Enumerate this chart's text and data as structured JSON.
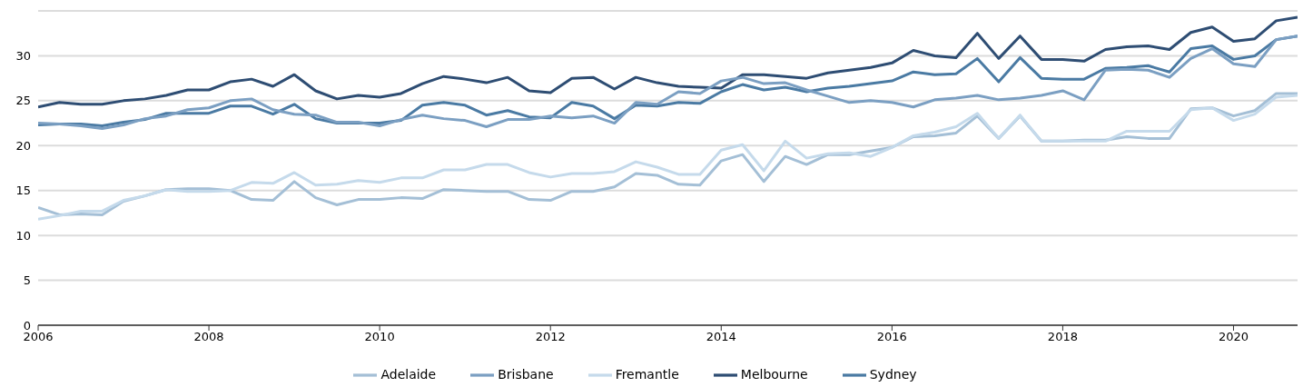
{
  "chart_data": {
    "type": "line",
    "x": [
      2006,
      2006.25,
      2006.5,
      2006.75,
      2007,
      2007.25,
      2007.5,
      2007.75,
      2008,
      2008.25,
      2008.5,
      2008.75,
      2009,
      2009.25,
      2009.5,
      2009.75,
      2010,
      2010.25,
      2010.5,
      2010.75,
      2011,
      2011.25,
      2011.5,
      2011.75,
      2012,
      2012.25,
      2012.5,
      2012.75,
      2013,
      2013.25,
      2013.5,
      2013.75,
      2014,
      2014.25,
      2014.5,
      2014.75,
      2015,
      2015.25,
      2015.5,
      2015.75,
      2016,
      2016.25,
      2016.5,
      2016.75,
      2017,
      2017.25,
      2017.5,
      2017.75,
      2018,
      2018.25,
      2018.5,
      2018.75,
      2019,
      2019.25,
      2019.5,
      2019.75,
      2020,
      2020.25,
      2020.5,
      2020.75
    ],
    "series": [
      {
        "name": "Melbourne",
        "color": "#2e4d73",
        "values": [
          24.3,
          24.8,
          24.6,
          24.6,
          25.0,
          25.2,
          25.6,
          26.2,
          26.2,
          27.1,
          27.4,
          26.6,
          27.9,
          26.1,
          25.2,
          25.6,
          25.4,
          25.8,
          26.9,
          27.7,
          27.4,
          27.0,
          27.6,
          26.1,
          25.9,
          27.5,
          27.6,
          26.3,
          27.6,
          27.0,
          26.6,
          26.5,
          26.4,
          27.9,
          27.9,
          27.7,
          27.5,
          28.1,
          28.4,
          28.7,
          29.2,
          30.6,
          30.0,
          29.8,
          32.5,
          29.7,
          32.2,
          29.6,
          29.6,
          29.4,
          30.7,
          31.0,
          31.1,
          30.7,
          32.6,
          33.2,
          31.6,
          31.9,
          33.9,
          34.3
        ]
      },
      {
        "name": "Sydney",
        "color": "#4a7aa3",
        "values": [
          22.3,
          22.4,
          22.4,
          22.2,
          22.6,
          22.9,
          23.6,
          23.6,
          23.6,
          24.4,
          24.4,
          23.5,
          24.6,
          23.0,
          22.5,
          22.5,
          22.5,
          22.8,
          24.5,
          24.8,
          24.5,
          23.4,
          23.9,
          23.2,
          23.1,
          24.8,
          24.4,
          23.0,
          24.5,
          24.4,
          24.8,
          24.7,
          26.0,
          26.8,
          26.2,
          26.5,
          26.0,
          26.4,
          26.6,
          26.9,
          27.2,
          28.2,
          27.9,
          28.0,
          29.7,
          27.1,
          29.8,
          27.5,
          27.4,
          27.4,
          28.6,
          28.7,
          28.9,
          28.2,
          30.8,
          31.1,
          29.6,
          30.0,
          31.8,
          32.2
        ]
      },
      {
        "name": "Brisbane",
        "color": "#7b9fc2",
        "values": [
          22.5,
          22.4,
          22.2,
          21.9,
          22.3,
          23.0,
          23.3,
          24.0,
          24.2,
          25.0,
          25.2,
          24.0,
          23.5,
          23.4,
          22.6,
          22.6,
          22.2,
          22.9,
          23.4,
          23.0,
          22.8,
          22.1,
          22.9,
          22.9,
          23.3,
          23.1,
          23.3,
          22.5,
          24.8,
          24.6,
          26.0,
          25.8,
          27.2,
          27.6,
          26.9,
          27.0,
          26.2,
          25.5,
          24.8,
          25.0,
          24.8,
          24.3,
          25.1,
          25.3,
          25.6,
          25.1,
          25.3,
          25.6,
          26.1,
          25.1,
          28.4,
          28.5,
          28.4,
          27.6,
          29.7,
          30.8,
          29.1,
          28.8,
          31.8,
          32.2
        ]
      },
      {
        "name": "Adelaide",
        "color": "#a4bfd6",
        "values": [
          13.1,
          12.3,
          12.4,
          12.3,
          13.8,
          14.4,
          15.1,
          15.2,
          15.2,
          15.0,
          14.0,
          13.9,
          16.0,
          14.2,
          13.4,
          14.0,
          14.0,
          14.2,
          14.1,
          15.1,
          15.0,
          14.9,
          14.9,
          14.0,
          13.9,
          14.9,
          14.9,
          15.4,
          16.9,
          16.7,
          15.7,
          15.6,
          18.3,
          19.0,
          16.0,
          18.8,
          17.9,
          19.0,
          19.0,
          19.4,
          19.8,
          21.0,
          21.1,
          21.4,
          23.3,
          20.8,
          23.3,
          20.5,
          20.5,
          20.6,
          20.6,
          21.0,
          20.8,
          20.8,
          24.1,
          24.2,
          23.3,
          23.9,
          25.8,
          25.8
        ]
      },
      {
        "name": "Fremantle",
        "color": "#c5daeb",
        "values": [
          11.8,
          12.2,
          12.7,
          12.7,
          13.9,
          14.4,
          15.1,
          14.9,
          14.9,
          15.0,
          15.9,
          15.8,
          17.0,
          15.6,
          15.7,
          16.1,
          15.9,
          16.4,
          16.4,
          17.3,
          17.3,
          17.9,
          17.9,
          17.0,
          16.5,
          16.9,
          16.9,
          17.1,
          18.2,
          17.6,
          16.8,
          16.8,
          19.5,
          20.1,
          17.2,
          20.5,
          18.6,
          19.1,
          19.2,
          18.8,
          19.8,
          21.1,
          21.5,
          22.1,
          23.6,
          20.8,
          23.4,
          20.5,
          20.5,
          20.5,
          20.5,
          21.6,
          21.6,
          21.6,
          24.0,
          24.2,
          22.8,
          23.5,
          25.4,
          25.6
        ]
      }
    ],
    "xlim": [
      2006,
      2020.75
    ],
    "xticks": [
      2006,
      2008,
      2010,
      2012,
      2014,
      2016,
      2018,
      2020
    ],
    "ylim": [
      0,
      35
    ],
    "yticks": [
      0,
      5,
      10,
      15,
      20,
      25,
      30
    ],
    "grid": "y",
    "legend": "bottom",
    "marker": "none",
    "line_style": "solid"
  }
}
